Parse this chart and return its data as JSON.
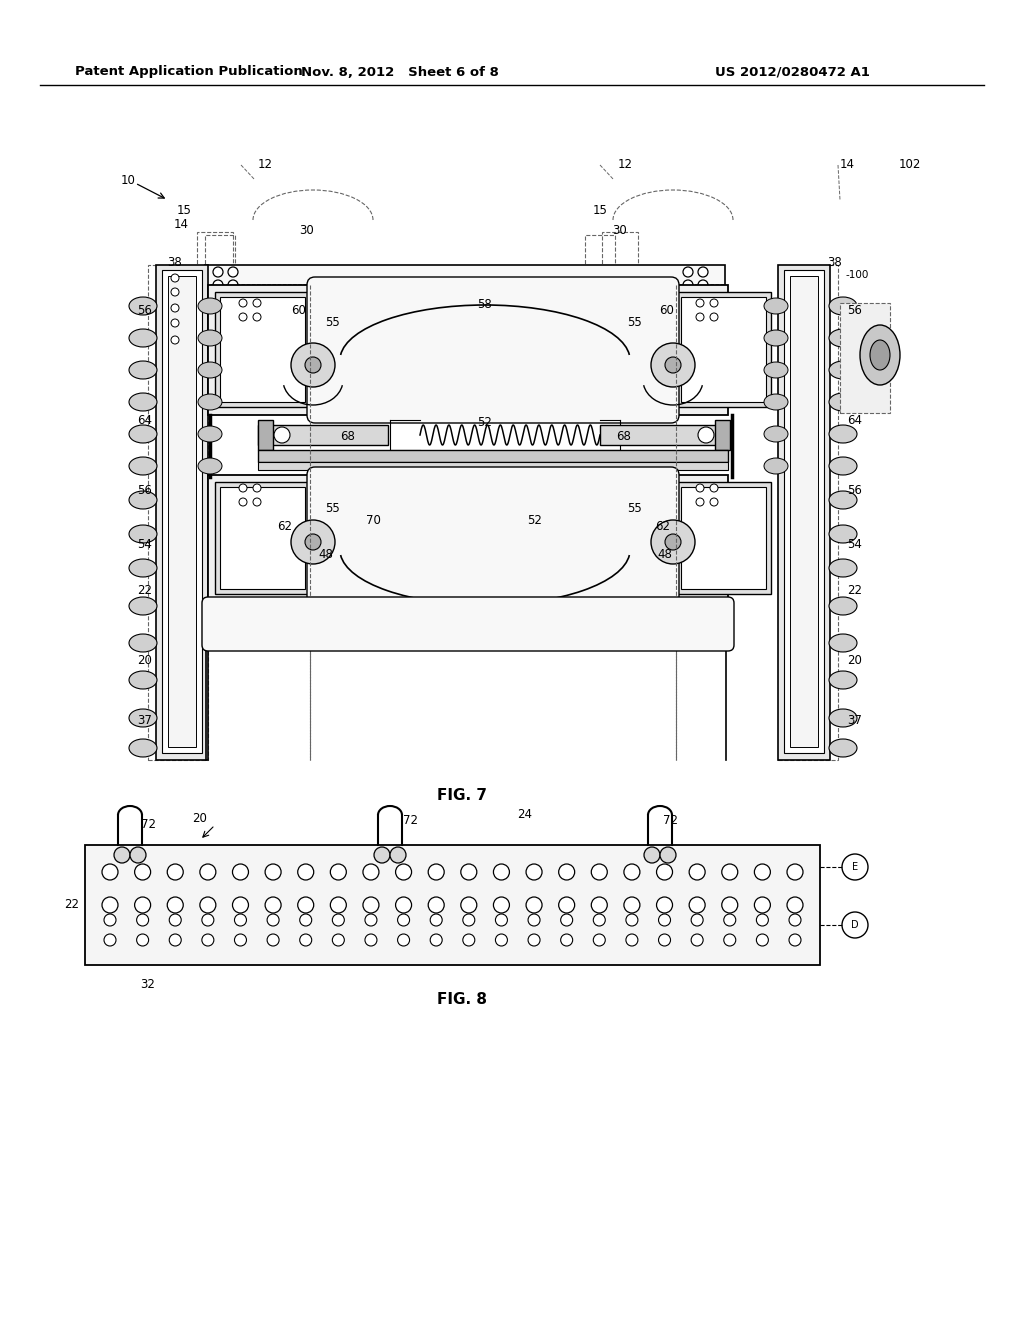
{
  "header_left": "Patent Application Publication",
  "header_mid": "Nov. 8, 2012   Sheet 6 of 8",
  "header_right": "US 2012/0280472 A1",
  "fig7_label": "FIG. 7",
  "fig8_label": "FIG. 8",
  "bg_color": "#ffffff",
  "lc": "#000000",
  "dc": "#666666",
  "gray1": "#e0e0e0",
  "gray2": "#c8c8c8",
  "gray3": "#f0f0f0"
}
